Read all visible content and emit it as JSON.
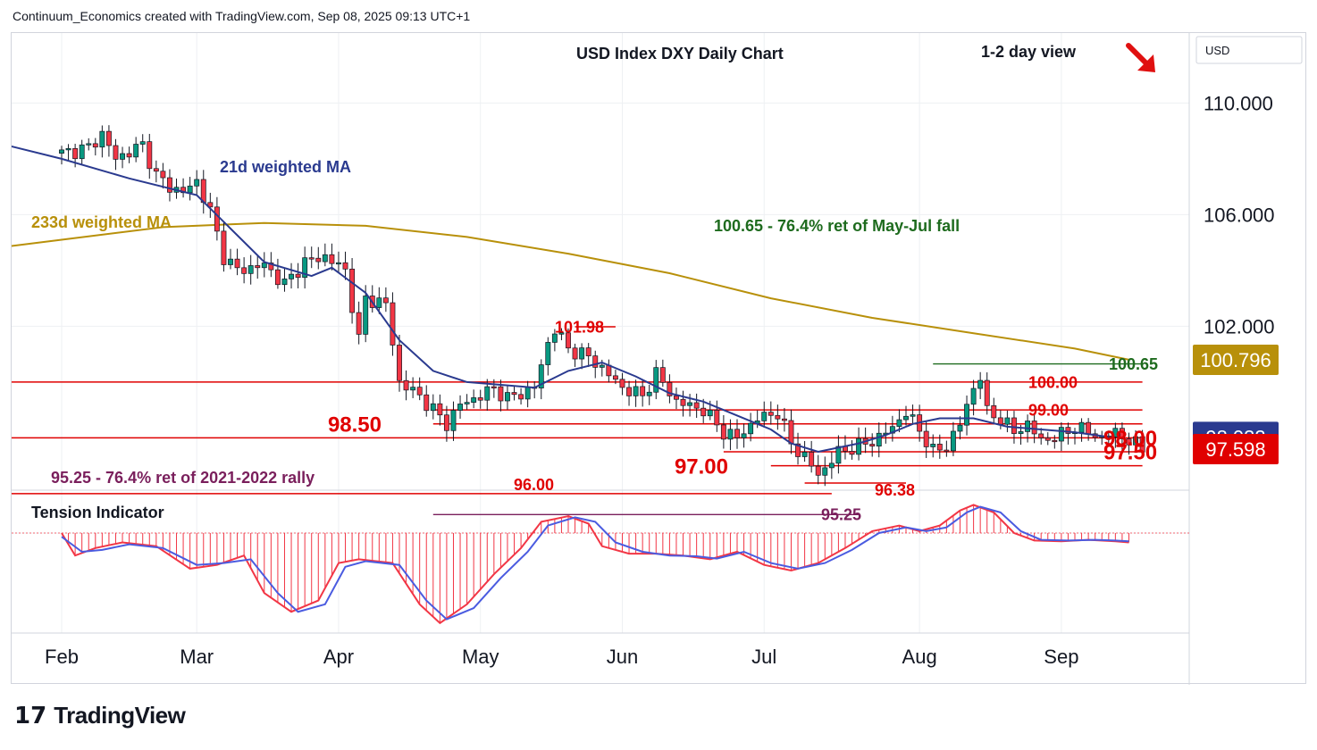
{
  "header": {
    "credit": "Continuum_Economics created with TradingView.com, Sep 08, 2025 09:13 UTC+1"
  },
  "footer": {
    "brand": "TradingView",
    "logo_icon": "tradingview-logo-icon"
  },
  "colors": {
    "up": "#089981",
    "down": "#f23645",
    "wma21": "#2a3a8f",
    "wma233": "#b8900a",
    "level_red": "#e00000",
    "level_green": "#1e6b1e",
    "level_purple": "#7a1f5c",
    "badge_blue": "#2a3a8f",
    "badge_red": "#cc0000",
    "badge_gold": "#b8900a"
  },
  "chart_data": {
    "type": "candlestick",
    "title": "USD Index DXY Daily Chart",
    "view_label": "1-2 day view",
    "view_direction": "down-arrow-icon",
    "currency": "USD",
    "y_ticks": [
      "110.000",
      "106.000",
      "102.000"
    ],
    "y_tick_values": [
      110,
      106,
      102
    ],
    "ylim": [
      94.2,
      111.2
    ],
    "x_ticks": [
      "Feb",
      "Mar",
      "Apr",
      "May",
      "Jun",
      "Jul",
      "Aug",
      "Sep"
    ],
    "x_tick_index": [
      0,
      20,
      41,
      62,
      83,
      104,
      127,
      148
    ],
    "n_days": 155,
    "price_badges": [
      {
        "label": "100.796",
        "value": 100.796,
        "color": "gold"
      },
      {
        "label": "98.033",
        "value": 98.033,
        "color": "blue"
      },
      {
        "label": "97.598",
        "value": 97.598,
        "color": "red"
      }
    ],
    "ma_labels": {
      "wma21": "21d weighted MA",
      "wma233": "233d weighted MA"
    },
    "annotations": [
      {
        "text": "100.65 - 76.4% ret of May-Jul fall",
        "color": "green"
      },
      {
        "text": "95.25 - 76.4% ret of 2021-2022 rally",
        "color": "purple"
      }
    ],
    "levels": [
      {
        "label": "101.98",
        "value": 101.98,
        "color": "red",
        "x0": 76,
        "x1": 82
      },
      {
        "label": "100.65",
        "value": 100.65,
        "color": "green",
        "x0": 129,
        "x1": 160
      },
      {
        "label": "100.00",
        "value": 100.0,
        "color": "red",
        "x0": -10,
        "x1": 160
      },
      {
        "label": "99.00",
        "value": 99.0,
        "color": "red",
        "x0": 55,
        "x1": 160
      },
      {
        "label": "98.50",
        "value": 98.5,
        "color": "red",
        "x0": 55,
        "x1": 160
      },
      {
        "label": "98.00",
        "value": 98.0,
        "color": "red",
        "x0": -10,
        "x1": 160
      },
      {
        "label": "97.50",
        "value": 97.5,
        "color": "red",
        "x0": 98,
        "x1": 160
      },
      {
        "label": "97.00",
        "value": 97.0,
        "color": "red",
        "x0": 105,
        "x1": 160
      },
      {
        "label": "96.38",
        "value": 96.38,
        "color": "red",
        "x0": 110,
        "x1": 125
      },
      {
        "label": "96.00",
        "value": 96.0,
        "color": "red",
        "x0": -10,
        "x1": 114
      },
      {
        "label": "95.25",
        "value": 95.25,
        "color": "purple",
        "x0": 55,
        "x1": 118
      }
    ],
    "wma233": [
      [
        -10,
        104.8
      ],
      [
        0,
        105.1
      ],
      [
        15,
        105.55
      ],
      [
        30,
        105.7
      ],
      [
        45,
        105.6
      ],
      [
        60,
        105.2
      ],
      [
        75,
        104.6
      ],
      [
        90,
        103.9
      ],
      [
        105,
        103.0
      ],
      [
        120,
        102.3
      ],
      [
        135,
        101.75
      ],
      [
        150,
        101.2
      ],
      [
        158,
        100.8
      ]
    ],
    "wma21": [
      [
        -10,
        108.6
      ],
      [
        0,
        108.0
      ],
      [
        10,
        107.3
      ],
      [
        20,
        106.7
      ],
      [
        25,
        105.5
      ],
      [
        30,
        104.3
      ],
      [
        37,
        103.8
      ],
      [
        40,
        104.1
      ],
      [
        45,
        103.2
      ],
      [
        50,
        101.5
      ],
      [
        55,
        100.4
      ],
      [
        60,
        100.0
      ],
      [
        65,
        99.9
      ],
      [
        70,
        99.8
      ],
      [
        75,
        100.4
      ],
      [
        80,
        100.7
      ],
      [
        85,
        100.2
      ],
      [
        90,
        99.6
      ],
      [
        95,
        99.3
      ],
      [
        100,
        98.8
      ],
      [
        105,
        98.3
      ],
      [
        108,
        97.8
      ],
      [
        112,
        97.5
      ],
      [
        118,
        97.8
      ],
      [
        122,
        98.1
      ],
      [
        126,
        98.5
      ],
      [
        130,
        98.7
      ],
      [
        135,
        98.7
      ],
      [
        140,
        98.4
      ],
      [
        145,
        98.3
      ],
      [
        150,
        98.2
      ],
      [
        155,
        98.03
      ]
    ],
    "close_path": [
      [
        0,
        108.2
      ],
      [
        4,
        108.4
      ],
      [
        6,
        108.9
      ],
      [
        8,
        108.0
      ],
      [
        12,
        108.5
      ],
      [
        14,
        107.4
      ],
      [
        16,
        107.0
      ],
      [
        18,
        106.8
      ],
      [
        20,
        107.2
      ],
      [
        22,
        106.1
      ],
      [
        24,
        104.5
      ],
      [
        26,
        104.0
      ],
      [
        30,
        104.2
      ],
      [
        33,
        103.5
      ],
      [
        36,
        104.3
      ],
      [
        39,
        104.5
      ],
      [
        42,
        104.0
      ],
      [
        44,
        101.5
      ],
      [
        45,
        103.0
      ],
      [
        48,
        102.8
      ],
      [
        50,
        100.0
      ],
      [
        53,
        99.5
      ],
      [
        55,
        99.0
      ],
      [
        57,
        98.5
      ],
      [
        59,
        99.2
      ],
      [
        62,
        99.5
      ],
      [
        64,
        99.8
      ],
      [
        66,
        99.4
      ],
      [
        70,
        99.8
      ],
      [
        72,
        101.4
      ],
      [
        73,
        101.9
      ],
      [
        75,
        101.2
      ],
      [
        78,
        100.9
      ],
      [
        80,
        100.5
      ],
      [
        83,
        99.8
      ],
      [
        86,
        99.5
      ],
      [
        88,
        100.3
      ],
      [
        91,
        99.3
      ],
      [
        95,
        99.0
      ],
      [
        98,
        98.2
      ],
      [
        100,
        98.0
      ],
      [
        103,
        98.7
      ],
      [
        106,
        98.9
      ],
      [
        108,
        97.8
      ],
      [
        110,
        97.3
      ],
      [
        112,
        96.7
      ],
      [
        113,
        96.9
      ],
      [
        115,
        97.5
      ],
      [
        118,
        97.7
      ],
      [
        121,
        98.0
      ],
      [
        123,
        98.4
      ],
      [
        125,
        98.9
      ],
      [
        127,
        98.3
      ],
      [
        129,
        97.5
      ],
      [
        131,
        97.7
      ],
      [
        133,
        98.5
      ],
      [
        135,
        99.8
      ],
      [
        136,
        100.2
      ],
      [
        137,
        98.9
      ],
      [
        139,
        98.7
      ],
      [
        141,
        98.2
      ],
      [
        143,
        98.5
      ],
      [
        145,
        97.9
      ],
      [
        148,
        98.1
      ],
      [
        150,
        98.4
      ],
      [
        152,
        98.2
      ],
      [
        154,
        98.0
      ],
      [
        156,
        98.2
      ],
      [
        158,
        97.9
      ],
      [
        160,
        97.6
      ]
    ],
    "tension": {
      "label": "Tension Indicator",
      "red": [
        [
          0,
          0.0
        ],
        [
          2,
          -0.6
        ],
        [
          5,
          -0.4
        ],
        [
          9,
          -0.25
        ],
        [
          14,
          -0.35
        ],
        [
          19,
          -0.95
        ],
        [
          23,
          -0.85
        ],
        [
          27,
          -0.6
        ],
        [
          30,
          -1.6
        ],
        [
          34,
          -2.1
        ],
        [
          38,
          -1.8
        ],
        [
          41,
          -0.8
        ],
        [
          44,
          -0.7
        ],
        [
          49,
          -0.8
        ],
        [
          53,
          -1.9
        ],
        [
          56,
          -2.4
        ],
        [
          60,
          -1.9
        ],
        [
          64,
          -1.1
        ],
        [
          68,
          -0.4
        ],
        [
          71,
          0.3
        ],
        [
          75,
          0.45
        ],
        [
          78,
          0.25
        ],
        [
          80,
          -0.35
        ],
        [
          84,
          -0.55
        ],
        [
          88,
          -0.55
        ],
        [
          92,
          -0.6
        ],
        [
          96,
          -0.7
        ],
        [
          100,
          -0.5
        ],
        [
          104,
          -0.85
        ],
        [
          108,
          -1.0
        ],
        [
          112,
          -0.8
        ],
        [
          116,
          -0.4
        ],
        [
          120,
          0.05
        ],
        [
          124,
          0.2
        ],
        [
          127,
          0.05
        ],
        [
          130,
          0.2
        ],
        [
          133,
          0.6
        ],
        [
          135,
          0.75
        ],
        [
          138,
          0.55
        ],
        [
          141,
          0.0
        ],
        [
          144,
          -0.2
        ],
        [
          148,
          -0.22
        ],
        [
          152,
          -0.18
        ],
        [
          156,
          -0.22
        ],
        [
          158,
          -0.25
        ]
      ],
      "blue": [
        [
          0,
          -0.1
        ],
        [
          3,
          -0.5
        ],
        [
          6,
          -0.45
        ],
        [
          10,
          -0.3
        ],
        [
          15,
          -0.4
        ],
        [
          20,
          -0.85
        ],
        [
          24,
          -0.8
        ],
        [
          28,
          -0.7
        ],
        [
          32,
          -1.6
        ],
        [
          35,
          -2.1
        ],
        [
          39,
          -1.9
        ],
        [
          42,
          -0.9
        ],
        [
          45,
          -0.75
        ],
        [
          50,
          -0.85
        ],
        [
          54,
          -1.8
        ],
        [
          57,
          -2.3
        ],
        [
          61,
          -2.0
        ],
        [
          65,
          -1.2
        ],
        [
          69,
          -0.5
        ],
        [
          72,
          0.2
        ],
        [
          76,
          0.42
        ],
        [
          79,
          0.3
        ],
        [
          82,
          -0.25
        ],
        [
          86,
          -0.5
        ],
        [
          90,
          -0.6
        ],
        [
          94,
          -0.62
        ],
        [
          97,
          -0.68
        ],
        [
          101,
          -0.5
        ],
        [
          105,
          -0.8
        ],
        [
          109,
          -0.95
        ],
        [
          113,
          -0.8
        ],
        [
          117,
          -0.45
        ],
        [
          121,
          0.0
        ],
        [
          125,
          0.15
        ],
        [
          128,
          0.05
        ],
        [
          131,
          0.15
        ],
        [
          134,
          0.55
        ],
        [
          136,
          0.7
        ],
        [
          139,
          0.55
        ],
        [
          142,
          0.05
        ],
        [
          145,
          -0.18
        ],
        [
          149,
          -0.2
        ],
        [
          153,
          -0.18
        ],
        [
          156,
          -0.2
        ],
        [
          158,
          -0.22
        ]
      ],
      "ylim": [
        -2.6,
        1.0
      ]
    }
  }
}
